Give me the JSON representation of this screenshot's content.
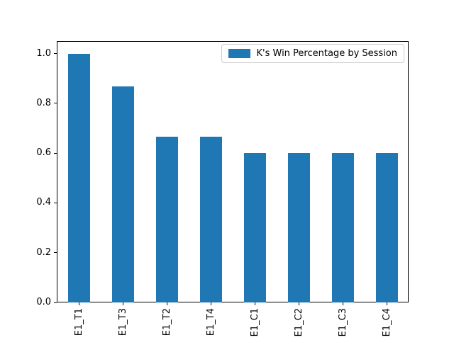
{
  "figure": {
    "background": "#ffffff"
  },
  "chart_data": {
    "type": "bar",
    "categories": [
      "E1_T1",
      "E1_T3",
      "E1_T2",
      "E1_T4",
      "E1_C1",
      "E1_C2",
      "E1_C3",
      "E1_C4"
    ],
    "values": [
      1.0,
      0.8667,
      0.6667,
      0.6667,
      0.6,
      0.6,
      0.6,
      0.6
    ],
    "title": "",
    "xlabel": "",
    "ylabel": "",
    "ylim": [
      0,
      1.05
    ],
    "yticks": [
      0.0,
      0.2,
      0.4,
      0.6,
      0.8,
      1.0
    ],
    "ytick_labels": [
      "0.0",
      "0.2",
      "0.4",
      "0.6",
      "0.8",
      "1.0"
    ],
    "x_tick_rotation": 90,
    "grid": false,
    "bar_color": "#1f77b4",
    "legend": {
      "label": "K's Win Percentage by Session",
      "position": "upper right",
      "swatch_color": "#1f77b4"
    }
  }
}
